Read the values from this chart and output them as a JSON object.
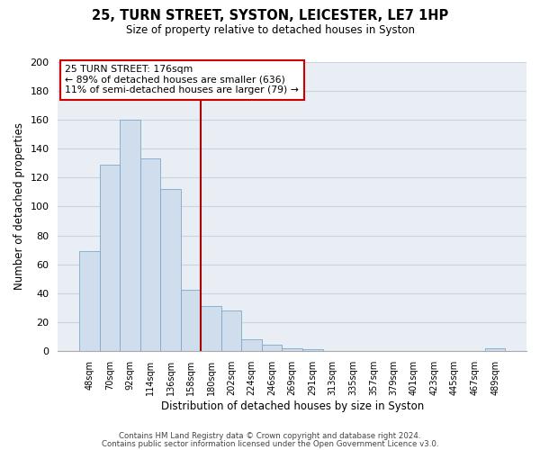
{
  "title": "25, TURN STREET, SYSTON, LEICESTER, LE7 1HP",
  "subtitle": "Size of property relative to detached houses in Syston",
  "xlabel": "Distribution of detached houses by size in Syston",
  "ylabel": "Number of detached properties",
  "bar_labels": [
    "48sqm",
    "70sqm",
    "92sqm",
    "114sqm",
    "136sqm",
    "158sqm",
    "180sqm",
    "202sqm",
    "224sqm",
    "246sqm",
    "269sqm",
    "291sqm",
    "313sqm",
    "335sqm",
    "357sqm",
    "379sqm",
    "401sqm",
    "423sqm",
    "445sqm",
    "467sqm",
    "489sqm"
  ],
  "bar_values": [
    69,
    129,
    160,
    133,
    112,
    42,
    31,
    28,
    8,
    4,
    2,
    1,
    0,
    0,
    0,
    0,
    0,
    0,
    0,
    0,
    2
  ],
  "bar_color": "#cfdded",
  "bar_edge_color": "#7aaac8",
  "vline_color": "#aa0000",
  "vline_x_index": 5.5,
  "annotation_title": "25 TURN STREET: 176sqm",
  "annotation_line1": "← 89% of detached houses are smaller (636)",
  "annotation_line2": "11% of semi-detached houses are larger (79) →",
  "annotation_box_color": "#ffffff",
  "annotation_box_edge": "#cc0000",
  "footer_line1": "Contains HM Land Registry data © Crown copyright and database right 2024.",
  "footer_line2": "Contains public sector information licensed under the Open Government Licence v3.0.",
  "ylim": [
    0,
    200
  ],
  "yticks": [
    0,
    20,
    40,
    60,
    80,
    100,
    120,
    140,
    160,
    180,
    200
  ],
  "grid_color": "#c8d4e0",
  "bg_color": "#e8eef4"
}
